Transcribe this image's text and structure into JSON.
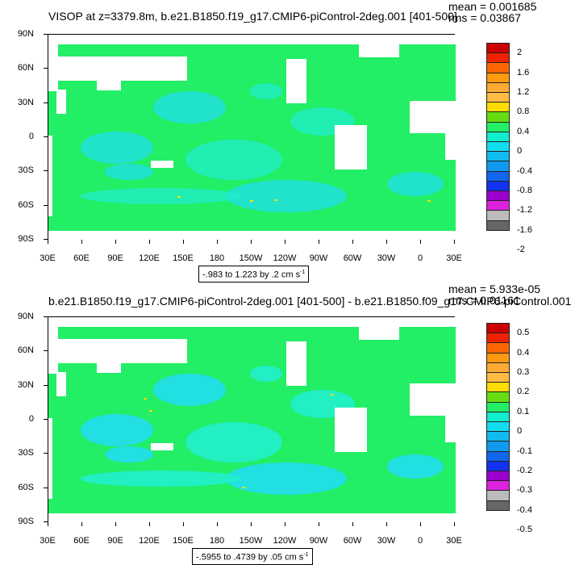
{
  "colors": {
    "ocean_base": "#22ee66",
    "ocean_neg": "#22eecc",
    "ocean_negmore": "#22ddee",
    "land": "#ffffff",
    "positive_speck": "#ffdd00",
    "colorbar": [
      "#666666",
      "#bbbbbb",
      "#dd22dd",
      "#9900cc",
      "#1133ee",
      "#1166ee",
      "#1199ee",
      "#11bbee",
      "#11ddee",
      "#11eecc",
      "#22ee66",
      "#66dd11",
      "#ffdd00",
      "#ffbb44",
      "#ffaa33",
      "#ff9911",
      "#ff6600",
      "#ee2200",
      "#cc0000"
    ]
  },
  "axes": {
    "lat_labels": [
      "90N",
      "60N",
      "30N",
      "0",
      "30S",
      "60S",
      "90S"
    ],
    "lon_labels": [
      "30E",
      "60E",
      "90E",
      "120E",
      "150E",
      "180",
      "150W",
      "120W",
      "90W",
      "60W",
      "30W",
      "0",
      "30E"
    ]
  },
  "chart_data": [
    {
      "type": "heatmap",
      "title": "VISOP at z=3379.8m, b.e21.B1850.f19_g17.CMIP6-piControl-2deg.001 [401-500]",
      "mean_label": "mean = 0.001685",
      "rms_label": "rms = 0.03867",
      "colorbar_levels": [
        "2",
        "1.6",
        "1.2",
        "0.8",
        "0.4",
        "0",
        "-0.4",
        "-0.8",
        "-1.2",
        "-1.6",
        "-2"
      ],
      "colorbar_values": [
        2,
        1.6,
        1.2,
        0.8,
        0.4,
        0,
        -0.4,
        -0.8,
        -1.2,
        -1.6,
        -2
      ],
      "range_text": "-.983 to 1.223 by .2 cm s",
      "range_unit_exp": "-1"
    },
    {
      "type": "heatmap",
      "title": "b.e21.B1850.f19_g17.CMIP6-piControl-2deg.001 [401-500] - b.e21.B1850.f09_g17.CMIP6-piControl.001",
      "mean_label": "mean = 5.933e-05",
      "rms_label": "rms = 0.01161",
      "colorbar_levels": [
        "0.5",
        "0.4",
        "0.3",
        "0.2",
        "0.1",
        "0",
        "-0.1",
        "-0.2",
        "-0.3",
        "-0.4",
        "-0.5"
      ],
      "colorbar_values": [
        0.5,
        0.4,
        0.3,
        0.2,
        0.1,
        0,
        -0.1,
        -0.2,
        -0.3,
        -0.4,
        -0.5
      ],
      "range_text": "-.5955 to .4739 by .05 cm s",
      "range_unit_exp": "-1"
    }
  ]
}
